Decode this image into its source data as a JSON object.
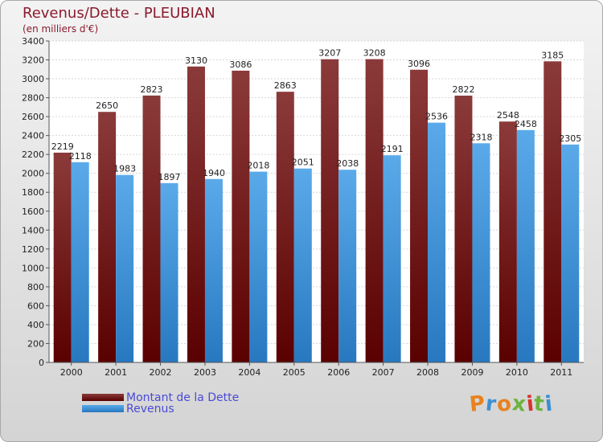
{
  "chart_data": {
    "type": "bar",
    "title": "Revenus/Dette - PLEUBIAN",
    "subtitle": "(en milliers d'€)",
    "categories": [
      "2000",
      "2001",
      "2002",
      "2003",
      "2004",
      "2005",
      "2006",
      "2007",
      "2008",
      "2009",
      "2010",
      "2011"
    ],
    "series": [
      {
        "name": "Montant de la Dette",
        "values": [
          2219,
          2650,
          2823,
          3130,
          3086,
          2863,
          3207,
          3208,
          3096,
          2822,
          2548,
          3185
        ]
      },
      {
        "name": "Revenus",
        "values": [
          2118,
          1983,
          1897,
          1940,
          2018,
          2051,
          2038,
          2191,
          2536,
          2318,
          2458,
          2305
        ]
      }
    ],
    "ylim": [
      0,
      3400
    ],
    "yticks": [
      0,
      200,
      400,
      600,
      800,
      1000,
      1200,
      1400,
      1600,
      1800,
      2000,
      2200,
      2400,
      2600,
      2800,
      3000,
      3200,
      3400
    ],
    "grid": true,
    "legend": "bottom-left"
  },
  "colors": {
    "dette_top": "#8b3a3a",
    "dette_bottom": "#5a0000",
    "revenus_top": "#5aaaea",
    "revenus_bottom": "#2878c0",
    "title": "#8b1a2e",
    "legend_text": "#4a4ad6"
  },
  "branding": {
    "logo": "Proxiti"
  }
}
